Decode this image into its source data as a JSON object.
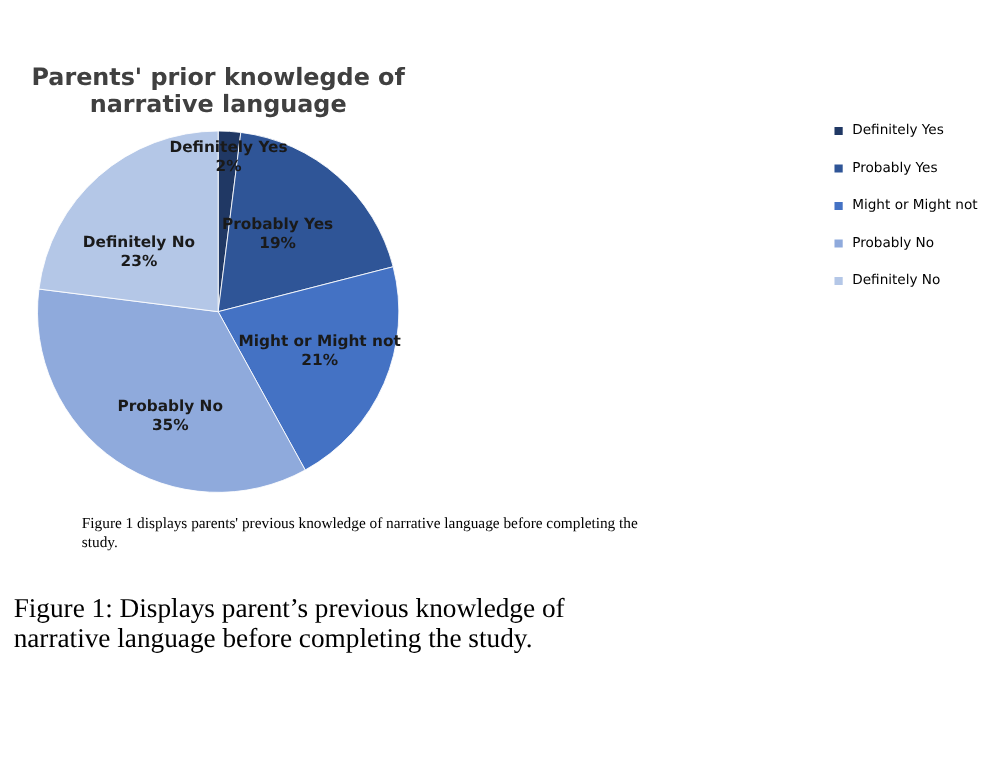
{
  "chart_data": {
    "type": "pie",
    "title": "Parents' prior knowlegde of narrative language",
    "categories": [
      "Definitely Yes",
      "Probably Yes",
      "Might or Might not",
      "Probably No",
      "Definitely No"
    ],
    "values": [
      2,
      19,
      21,
      35,
      23
    ],
    "colors": [
      "#203864",
      "#2f5597",
      "#4472c4",
      "#8faadc",
      "#b4c7e7"
    ],
    "value_labels": [
      "2%",
      "19%",
      "21%",
      "35%",
      "23%"
    ],
    "legend": "right",
    "annotations": [
      "Figure 1 displays parents' previous knowledge of narrative language before completing the study.",
      "Figure 1: Displays parent’s previous knowledge of narrative language before completing the study."
    ]
  }
}
